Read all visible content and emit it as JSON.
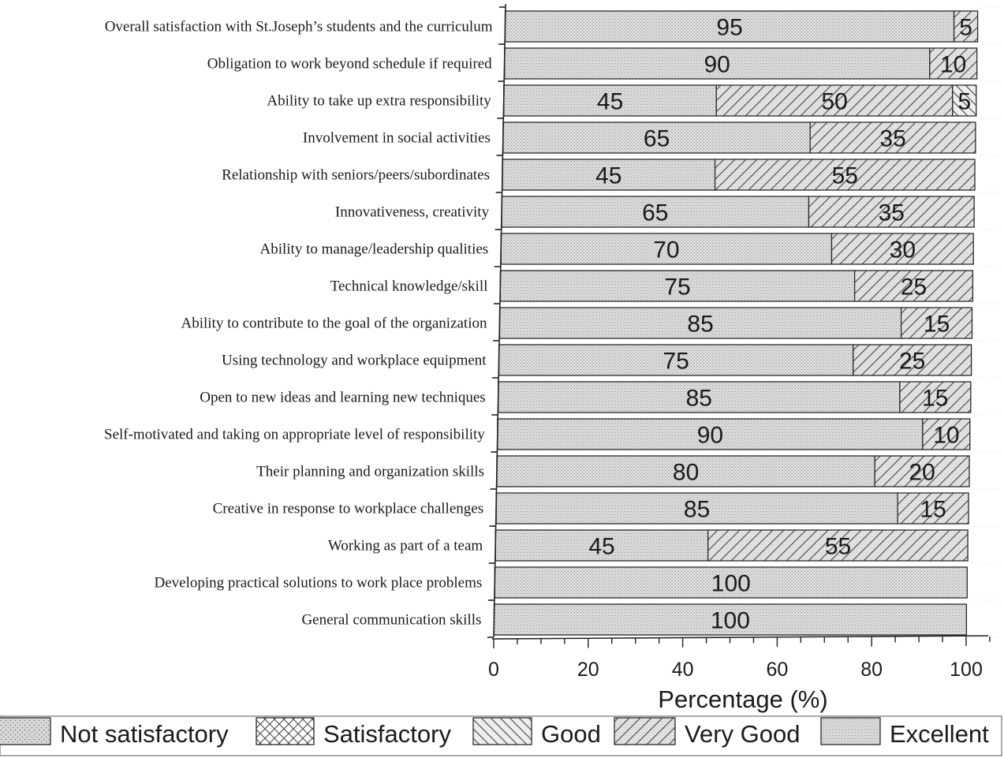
{
  "chart_data": {
    "type": "bar",
    "orientation": "horizontal",
    "stacked": true,
    "xlabel": "Percentage (%)",
    "xlim": [
      0,
      100
    ],
    "xticks": [
      0,
      20,
      40,
      60,
      80,
      100
    ],
    "legend_position": "bottom",
    "categories": [
      "Overall satisfaction with St.Joseph’s  students and the curriculum",
      "Obligation to work beyond schedule if required",
      "Ability to take up extra responsibility",
      "Involvement in social activities",
      "Relationship with seniors/peers/subordinates",
      "Innovativeness, creativity",
      "Ability to manage/leadership qualities",
      "Technical knowledge/skill",
      "Ability to contribute to the goal of the organization",
      "Using technology and workplace equipment",
      "Open to new ideas and learning new techniques",
      "Self-motivated and taking on appropriate level of responsibility",
      "Their planning and organization skills",
      "Creative in response to workplace challenges",
      "Working as part of a team",
      "Developing practical solutions to work place problems",
      "General communication skills"
    ],
    "series": [
      {
        "name": "Not satisfactory",
        "pattern": "dots",
        "values": [
          0,
          0,
          0,
          0,
          0,
          0,
          0,
          0,
          0,
          0,
          0,
          0,
          0,
          0,
          0,
          0,
          0
        ]
      },
      {
        "name": "Satisfactory",
        "pattern": "crosshatch",
        "values": [
          0,
          0,
          0,
          0,
          0,
          0,
          0,
          0,
          0,
          0,
          0,
          0,
          0,
          0,
          0,
          0,
          0
        ]
      },
      {
        "name": "Good",
        "pattern": "backslash",
        "values": [
          0,
          0,
          5,
          0,
          0,
          0,
          0,
          0,
          0,
          0,
          0,
          0,
          0,
          0,
          0,
          0,
          0
        ]
      },
      {
        "name": "Very Good",
        "pattern": "slash",
        "values": [
          5,
          10,
          50,
          35,
          55,
          35,
          30,
          25,
          15,
          25,
          15,
          10,
          20,
          15,
          55,
          0,
          0
        ]
      },
      {
        "name": "Excellent",
        "pattern": "fine",
        "values": [
          95,
          90,
          45,
          65,
          45,
          65,
          70,
          75,
          85,
          75,
          85,
          90,
          80,
          85,
          45,
          100,
          100
        ]
      }
    ]
  }
}
